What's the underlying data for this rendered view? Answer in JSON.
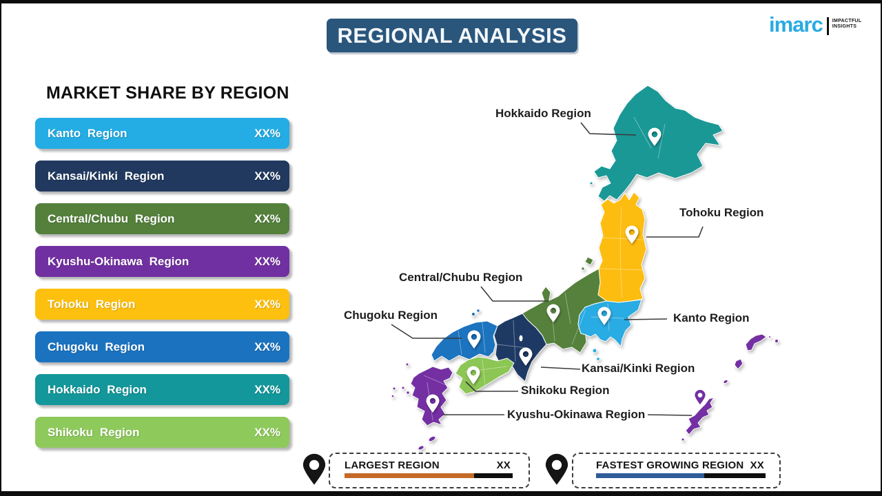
{
  "header": {
    "title": "REGIONAL ANALYSIS",
    "box_color": "#2A567C"
  },
  "logo": {
    "brand": "imarc",
    "brand_color": "#29ABE2",
    "tagline_line1": "IMPACTFUL",
    "tagline_line2": "INSIGHTS"
  },
  "market_share": {
    "heading": "MARKET SHARE BY REGION",
    "items": [
      {
        "label": "Kanto Region",
        "value": "XX%",
        "color": "#24ACE4"
      },
      {
        "label": "Kansai/Kinki Region",
        "value": "XX%",
        "color": "#21395F"
      },
      {
        "label": "Central/Chubu Region",
        "value": "XX%",
        "color": "#54803C"
      },
      {
        "label": "Kyushu-Okinawa Region",
        "value": "XX%",
        "color": "#7130A1"
      },
      {
        "label": "Tohoku Region",
        "value": "XX%",
        "color": "#FEC00F"
      },
      {
        "label": "Chugoku Region",
        "value": "XX%",
        "color": "#1B73C0"
      },
      {
        "label": "Hokkaido Region",
        "value": "XX%",
        "color": "#13979A"
      },
      {
        "label": "Shikoku Region",
        "value": "XX%",
        "color": "#8EC95C"
      }
    ]
  },
  "map": {
    "region_colors": {
      "hokkaido": "#1A9896",
      "tohoku": "#FDBD10",
      "kanto": "#29ABE3",
      "chubu": "#55813C",
      "kansai": "#1E3A64",
      "chugoku": "#1C73BE",
      "shikoku": "#8CC654",
      "kyushu_okinawa": "#7430A3"
    },
    "pin_color": "#FFFFFF",
    "callout_color": "#3A3A3A",
    "labels": [
      {
        "text": "Hokkaido Region"
      },
      {
        "text": "Tohoku Region"
      },
      {
        "text": "Central/Chubu Region"
      },
      {
        "text": "Chugoku Region"
      },
      {
        "text": "Kanto Region"
      },
      {
        "text": "Kansai/Kinki Region"
      },
      {
        "text": "Shikoku Region"
      },
      {
        "text": "Kyushu-Okinawa Region"
      }
    ]
  },
  "legend": {
    "pin_color": "#151515",
    "track_color": "#0e0e0e",
    "largest": {
      "label": "LARGEST REGION",
      "value": "XX",
      "bar_color": "#C56A27",
      "bar_fill_pct": 77
    },
    "fastest": {
      "label": "FASTEST GROWING REGION",
      "value": "XX",
      "bar_color": "#2F5B99",
      "bar_fill_pct": 64
    }
  }
}
